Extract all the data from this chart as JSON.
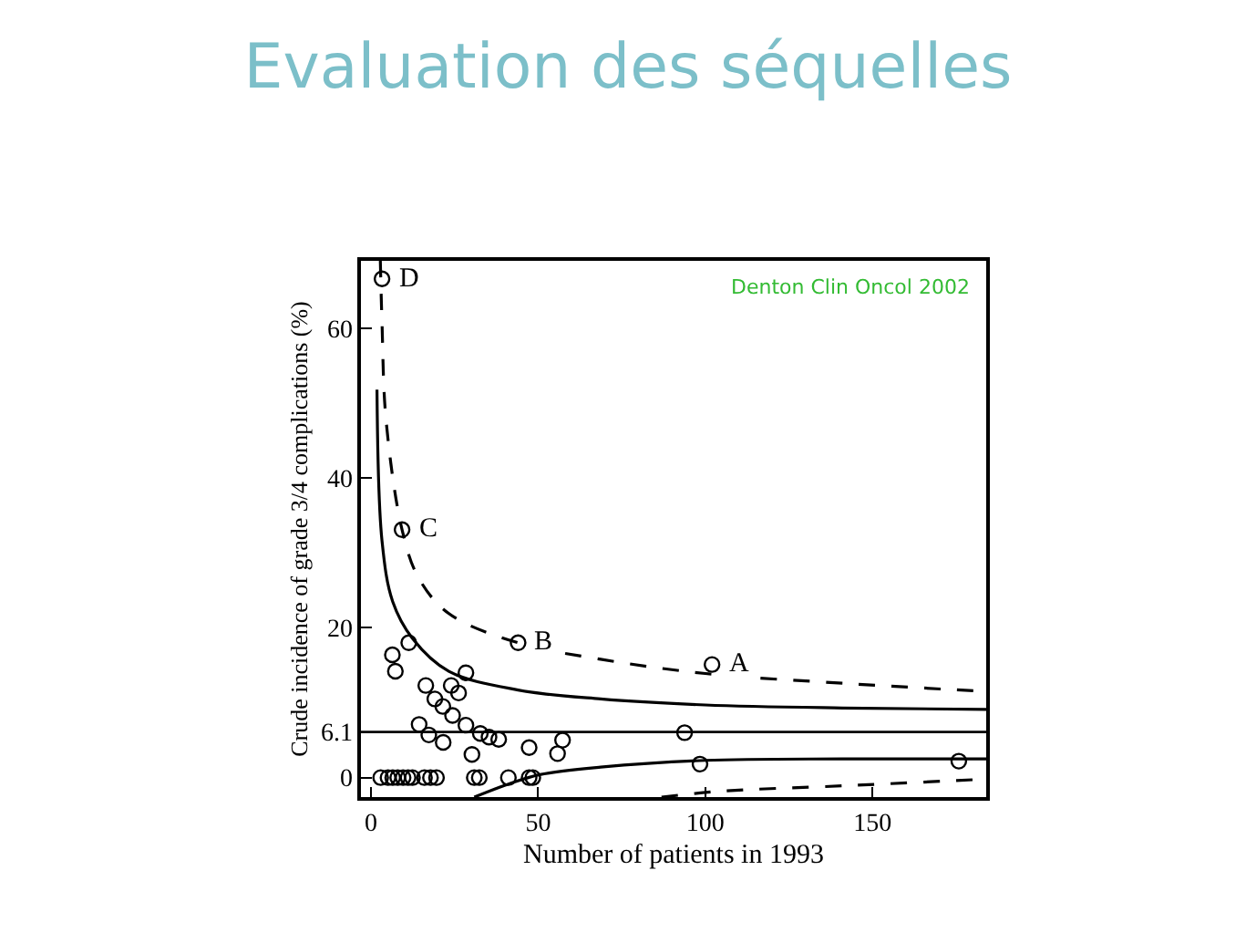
{
  "chart_data": {
    "type": "scatter",
    "title": "Evaluation des séquelles",
    "xlabel": "Number of patients in 1993",
    "ylabel": "Crude incidence of grade 3/4 complications (%)",
    "xlim": [
      -3,
      184
    ],
    "ylim": [
      -2.6,
      69
    ],
    "xticks": [
      0,
      50,
      100,
      150
    ],
    "yticks": [
      0,
      6.1,
      20,
      40,
      60
    ],
    "legend": false,
    "series": [
      {
        "color": "#000000",
        "marker": "circle",
        "x": [
          3.3,
          9.3,
          44,
          102,
          6.4,
          11.3,
          7.3,
          28.4,
          16.4,
          24,
          26.2,
          19.1,
          21.5,
          24.4,
          28.4,
          14.4,
          17.3,
          21.6,
          32.7,
          35.3,
          38.2,
          30.2,
          47.3,
          57.3,
          55.8,
          93.8,
          98.4,
          175.8,
          2.9,
          5.1,
          6.5,
          8,
          9.6,
          11.1,
          12.4,
          16,
          17.8,
          19.6,
          30.9,
          32.4,
          41.1,
          47.3,
          48.4
        ],
        "values": [
          66.6,
          33.1,
          18,
          15.1,
          16.4,
          18,
          14.2,
          14,
          12.3,
          12.3,
          11.3,
          10.5,
          9.5,
          8.3,
          7,
          7.1,
          5.7,
          4.7,
          5.9,
          5.4,
          5.1,
          3.1,
          4,
          5,
          3.2,
          6,
          1.8,
          2.2,
          0,
          0,
          0,
          0,
          0,
          0,
          0,
          0,
          0,
          0,
          0,
          0,
          0,
          0,
          0
        ]
      },
      {
        "type": "line",
        "color": "#000000",
        "line_style": "solid",
        "x": [
          1.8,
          3.3,
          6.5,
          12.4,
          23.3,
          44,
          68.7,
          100,
          141,
          184
        ],
        "values": [
          51.8,
          31.6,
          23.5,
          18.6,
          14.2,
          11.7,
          10.5,
          9.7,
          9.3,
          9.1
        ]
      },
      {
        "type": "line",
        "color": "#000000",
        "line_style": "dashed",
        "x": [
          2.8,
          3.3,
          4.5,
          9.3,
          14.2,
          23.3,
          44,
          68.7,
          100,
          141,
          184
        ],
        "values": [
          69,
          60.7,
          47.8,
          33.1,
          26.7,
          21.9,
          18,
          15.8,
          13.9,
          12.6,
          11.5
        ]
      },
      {
        "type": "line",
        "color": "#000000",
        "line_style": "solid",
        "x": [
          30.9,
          41.5,
          50.5,
          68.7,
          100,
          141,
          184
        ],
        "values": [
          -2.6,
          -0.8,
          0.4,
          1.4,
          2.3,
          2.5,
          2.5
        ]
      },
      {
        "type": "line",
        "color": "#000000",
        "line_style": "dashed",
        "x": [
          86.9,
          105,
          141,
          184
        ],
        "values": [
          -2.6,
          -1.8,
          -1.1,
          -0.2
        ]
      }
    ],
    "ref_lines": [
      {
        "axis": "y",
        "value": 6.1,
        "color": "#000000",
        "line_style": "solid"
      }
    ],
    "annotations": [
      {
        "text": "D",
        "x": 3.3,
        "y": 66.6
      },
      {
        "text": "C",
        "x": 9.3,
        "y": 33.1
      },
      {
        "text": "B",
        "x": 44,
        "y": 18
      },
      {
        "text": "A",
        "x": 102,
        "y": 15.1
      },
      "Denton Clin Oncol 2002"
    ]
  }
}
